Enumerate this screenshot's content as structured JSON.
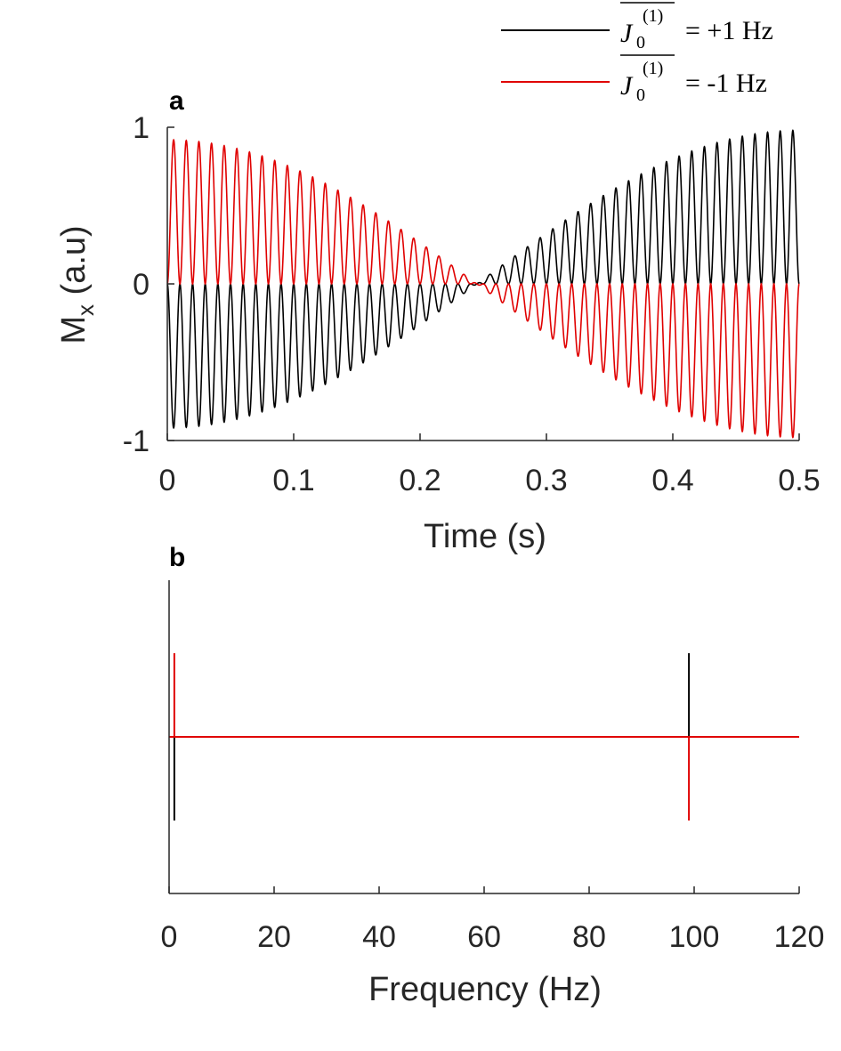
{
  "legend": {
    "entries": [
      {
        "symbol": "J",
        "subscript": "0",
        "superscript": "(1)",
        "value_text": "= +1 Hz",
        "color": "#000000"
      },
      {
        "symbol": "J",
        "subscript": "0",
        "superscript": "(1)",
        "value_text": "= -1 Hz",
        "color": "#e00000"
      }
    ]
  },
  "chart_data": [
    {
      "panel": "a",
      "type": "line",
      "title": "",
      "xlabel": "Time (s)",
      "ylabel_main": "M",
      "ylabel_sub": "x",
      "ylabel_rest": " (a.u)",
      "xlim": [
        0,
        0.5
      ],
      "ylim": [
        -1,
        1
      ],
      "xticks": [
        "0",
        "0.1",
        "0.2",
        "0.3",
        "0.4",
        "0.5"
      ],
      "yticks": [
        "-1",
        "0",
        "1"
      ],
      "series": [
        {
          "name": "J0(1) = +1 Hz",
          "color": "#000000",
          "carrier_hz": 100,
          "envelope_hz": 1,
          "sign": -1,
          "amplitude": 1
        },
        {
          "name": "J0(1) = -1 Hz",
          "color": "#e00000",
          "carrier_hz": 100,
          "envelope_hz": 1,
          "sign": 1,
          "amplitude": 1
        }
      ]
    },
    {
      "panel": "b",
      "type": "line",
      "title": "",
      "xlabel": "Frequency (Hz)",
      "ylabel": "",
      "xlim": [
        0,
        120
      ],
      "xticks": [
        "0",
        "20",
        "40",
        "60",
        "80",
        "100",
        "120"
      ],
      "series": [
        {
          "name": "J0(1) = +1 Hz",
          "color": "#000000",
          "peaks": [
            {
              "x": 1,
              "y": -1
            },
            {
              "x": 99,
              "y": 1
            }
          ]
        },
        {
          "name": "J0(1) = -1 Hz",
          "color": "#e00000",
          "peaks": [
            {
              "x": 1,
              "y": 1
            },
            {
              "x": 99,
              "y": -1
            }
          ]
        }
      ]
    }
  ]
}
